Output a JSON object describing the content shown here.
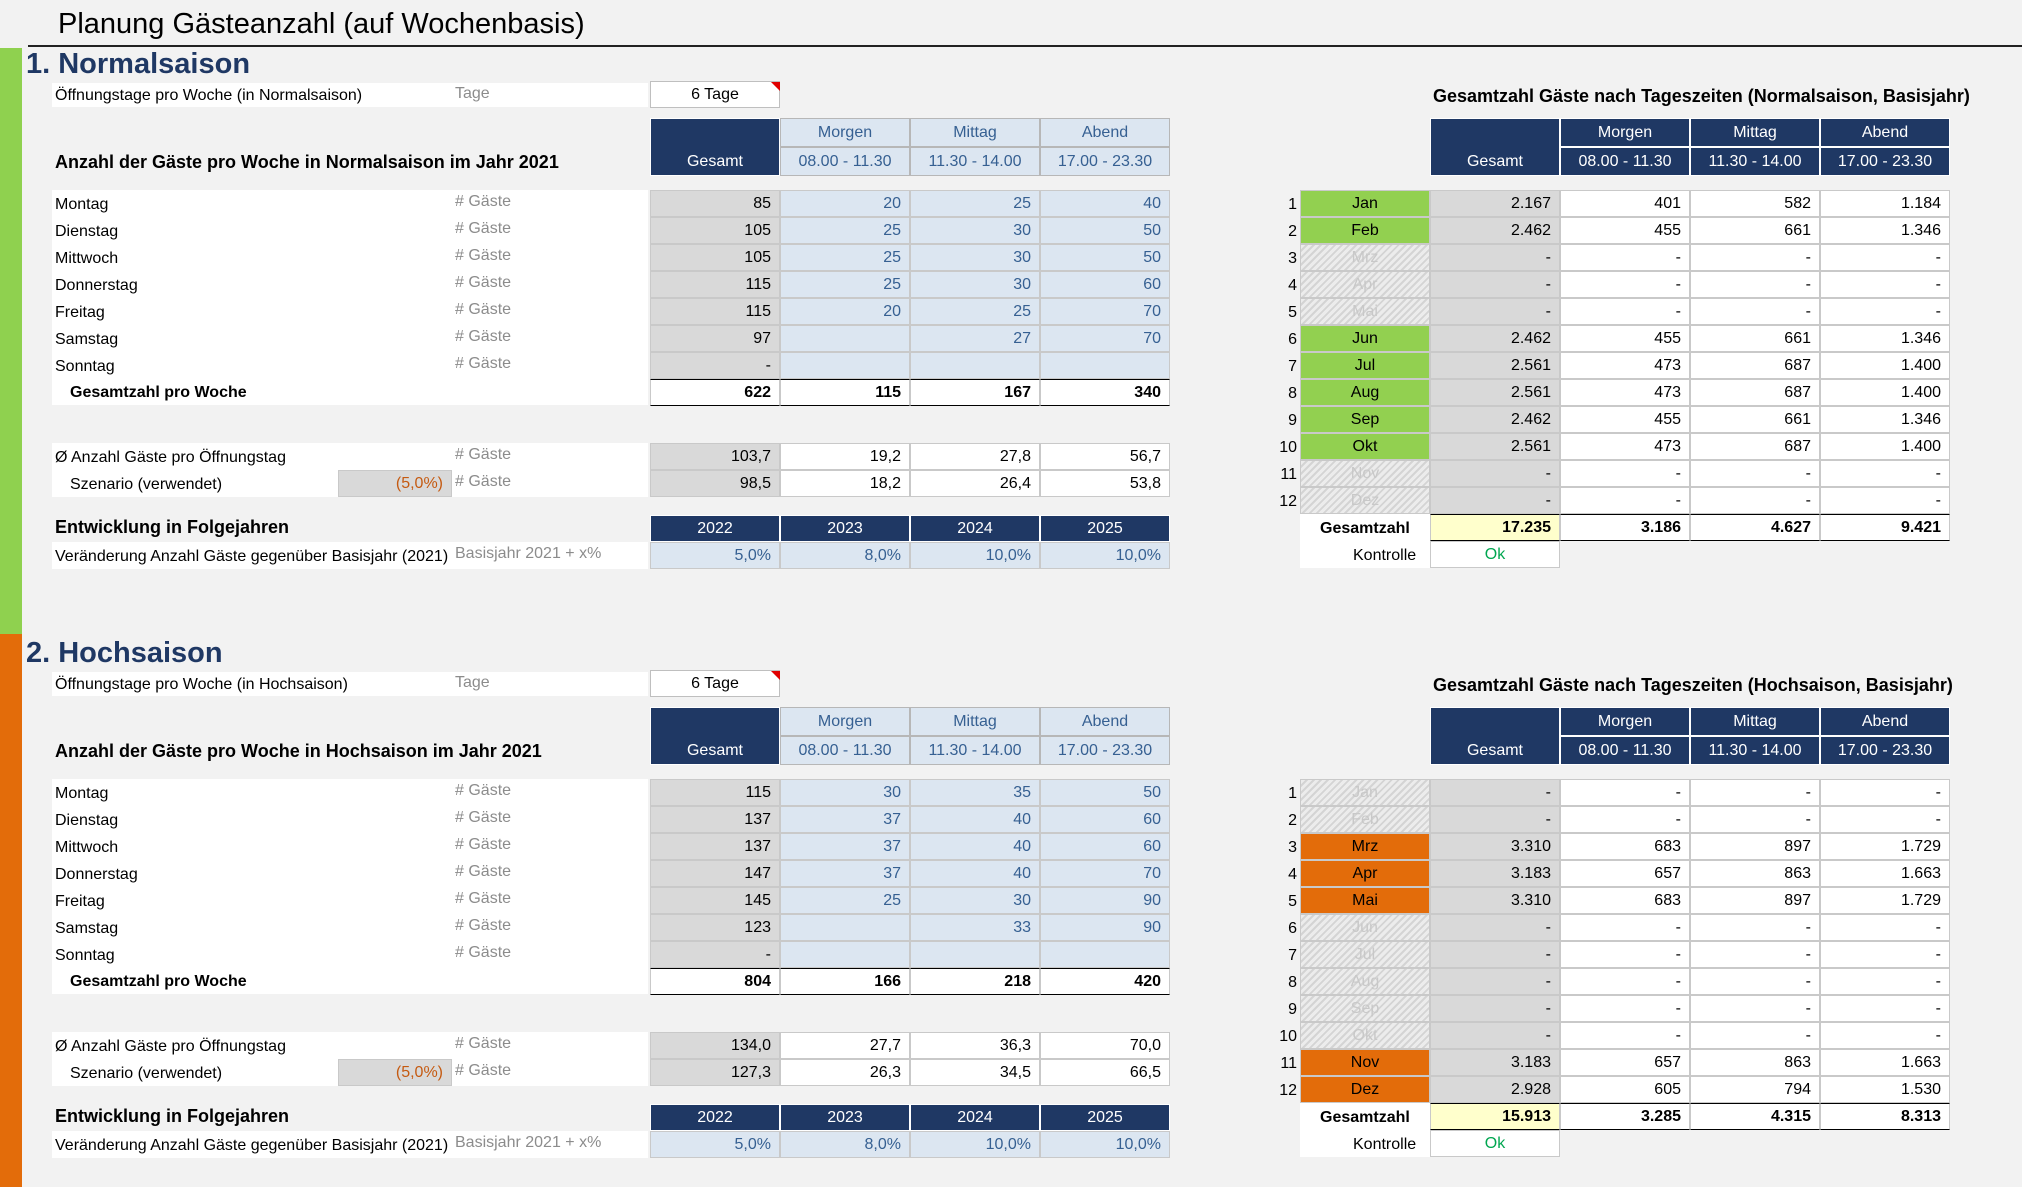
{
  "page_title": "Planung Gästeanzahl (auf Wochenbasis)",
  "sections": [
    {
      "title": "1. Normalsaison",
      "open_days_label": "Öffnungstage pro Woche (in Normalsaison)",
      "open_days_unit": "Tage",
      "open_days_value": "6 Tage",
      "weekly_title": "Anzahl der Gäste pro Woche in Normalsaison im Jahr 2021",
      "col_headers": {
        "total": "Gesamt",
        "morning": "Morgen",
        "noon": "Mittag",
        "evening": "Abend",
        "morning_time": "08.00 - 11.30",
        "noon_time": "11.30 - 14.00",
        "evening_time": "17.00 - 23.30"
      },
      "guest_unit": "# Gäste",
      "days": [
        {
          "day": "Montag",
          "total": "85",
          "morning": "20",
          "noon": "25",
          "evening": "40"
        },
        {
          "day": "Dienstag",
          "total": "105",
          "morning": "25",
          "noon": "30",
          "evening": "50"
        },
        {
          "day": "Mittwoch",
          "total": "105",
          "morning": "25",
          "noon": "30",
          "evening": "50"
        },
        {
          "day": "Donnerstag",
          "total": "115",
          "morning": "25",
          "noon": "30",
          "evening": "60"
        },
        {
          "day": "Freitag",
          "total": "115",
          "morning": "20",
          "noon": "25",
          "evening": "70"
        },
        {
          "day": "Samstag",
          "total": "97",
          "morning": "",
          "noon": "27",
          "evening": "70"
        },
        {
          "day": "Sonntag",
          "total": "-",
          "morning": "",
          "noon": "",
          "evening": ""
        }
      ],
      "week_total": {
        "label": "Gesamtzahl pro Woche",
        "total": "622",
        "morning": "115",
        "noon": "167",
        "evening": "340"
      },
      "avg": {
        "label": "Ø Anzahl Gäste pro Öffnungstag",
        "unit": "# Gäste",
        "total": "103,7",
        "morning": "19,2",
        "noon": "27,8",
        "evening": "56,7"
      },
      "scenario": {
        "label": "Szenario (verwendet)",
        "pct": "(5,0%)",
        "unit": "# Gäste",
        "total": "98,5",
        "morning": "18,2",
        "noon": "26,4",
        "evening": "53,8"
      },
      "dev_title": "Entwicklung in Folgejahren",
      "years": [
        "2022",
        "2023",
        "2024",
        "2025"
      ],
      "dev_label": "Veränderung Anzahl Gäste gegenüber Basisjahr (2021)",
      "dev_unit": "Basisjahr 2021 + x%",
      "dev_values": [
        "5,0%",
        "8,0%",
        "10,0%",
        "10,0%"
      ],
      "right_title": "Gesamtzahl Gäste nach Tageszeiten (Normalsaison, Basisjahr)",
      "months": [
        {
          "n": "1",
          "m": "Jan",
          "state": "green",
          "total": "2.167",
          "morning": "401",
          "noon": "582",
          "evening": "1.184"
        },
        {
          "n": "2",
          "m": "Feb",
          "state": "green",
          "total": "2.462",
          "morning": "455",
          "noon": "661",
          "evening": "1.346"
        },
        {
          "n": "3",
          "m": "Mrz",
          "state": "hatch",
          "total": "-",
          "morning": "-",
          "noon": "-",
          "evening": "-"
        },
        {
          "n": "4",
          "m": "Apr",
          "state": "hatch",
          "total": "-",
          "morning": "-",
          "noon": "-",
          "evening": "-"
        },
        {
          "n": "5",
          "m": "Mai",
          "state": "hatch",
          "total": "-",
          "morning": "-",
          "noon": "-",
          "evening": "-"
        },
        {
          "n": "6",
          "m": "Jun",
          "state": "green",
          "total": "2.462",
          "morning": "455",
          "noon": "661",
          "evening": "1.346"
        },
        {
          "n": "7",
          "m": "Jul",
          "state": "green",
          "total": "2.561",
          "morning": "473",
          "noon": "687",
          "evening": "1.400"
        },
        {
          "n": "8",
          "m": "Aug",
          "state": "green",
          "total": "2.561",
          "morning": "473",
          "noon": "687",
          "evening": "1.400"
        },
        {
          "n": "9",
          "m": "Sep",
          "state": "green",
          "total": "2.462",
          "morning": "455",
          "noon": "661",
          "evening": "1.346"
        },
        {
          "n": "10",
          "m": "Okt",
          "state": "green",
          "total": "2.561",
          "morning": "473",
          "noon": "687",
          "evening": "1.400"
        },
        {
          "n": "11",
          "m": "Nov",
          "state": "hatch",
          "total": "-",
          "morning": "-",
          "noon": "-",
          "evening": "-"
        },
        {
          "n": "12",
          "m": "Dez",
          "state": "hatch",
          "total": "-",
          "morning": "-",
          "noon": "-",
          "evening": "-"
        }
      ],
      "grand_total": {
        "label": "Gesamtzahl",
        "total": "17.235",
        "morning": "3.186",
        "noon": "4.627",
        "evening": "9.421"
      },
      "check": {
        "label": "Kontrolle",
        "value": "Ok"
      }
    },
    {
      "title": "2. Hochsaison",
      "open_days_label": "Öffnungstage pro Woche (in Hochsaison)",
      "open_days_unit": "Tage",
      "open_days_value": "6 Tage",
      "weekly_title": "Anzahl der Gäste pro Woche in Hochsaison im Jahr 2021",
      "col_headers": {
        "total": "Gesamt",
        "morning": "Morgen",
        "noon": "Mittag",
        "evening": "Abend",
        "morning_time": "08.00 - 11.30",
        "noon_time": "11.30 - 14.00",
        "evening_time": "17.00 - 23.30"
      },
      "guest_unit": "# Gäste",
      "days": [
        {
          "day": "Montag",
          "total": "115",
          "morning": "30",
          "noon": "35",
          "evening": "50"
        },
        {
          "day": "Dienstag",
          "total": "137",
          "morning": "37",
          "noon": "40",
          "evening": "60"
        },
        {
          "day": "Mittwoch",
          "total": "137",
          "morning": "37",
          "noon": "40",
          "evening": "60"
        },
        {
          "day": "Donnerstag",
          "total": "147",
          "morning": "37",
          "noon": "40",
          "evening": "70"
        },
        {
          "day": "Freitag",
          "total": "145",
          "morning": "25",
          "noon": "30",
          "evening": "90"
        },
        {
          "day": "Samstag",
          "total": "123",
          "morning": "",
          "noon": "33",
          "evening": "90"
        },
        {
          "day": "Sonntag",
          "total": "-",
          "morning": "",
          "noon": "",
          "evening": ""
        }
      ],
      "week_total": {
        "label": "Gesamtzahl pro Woche",
        "total": "804",
        "morning": "166",
        "noon": "218",
        "evening": "420"
      },
      "avg": {
        "label": "Ø Anzahl Gäste pro Öffnungstag",
        "unit": "# Gäste",
        "total": "134,0",
        "morning": "27,7",
        "noon": "36,3",
        "evening": "70,0"
      },
      "scenario": {
        "label": "Szenario (verwendet)",
        "pct": "(5,0%)",
        "unit": "# Gäste",
        "total": "127,3",
        "morning": "26,3",
        "noon": "34,5",
        "evening": "66,5"
      },
      "dev_title": "Entwicklung in Folgejahren",
      "years": [
        "2022",
        "2023",
        "2024",
        "2025"
      ],
      "dev_label": "Veränderung Anzahl Gäste gegenüber Basisjahr (2021)",
      "dev_unit": "Basisjahr 2021 + x%",
      "dev_values": [
        "5,0%",
        "8,0%",
        "10,0%",
        "10,0%"
      ],
      "right_title": "Gesamtzahl Gäste nach Tageszeiten (Hochsaison, Basisjahr)",
      "months": [
        {
          "n": "1",
          "m": "Jan",
          "state": "hatch",
          "total": "-",
          "morning": "-",
          "noon": "-",
          "evening": "-"
        },
        {
          "n": "2",
          "m": "Feb",
          "state": "hatch",
          "total": "-",
          "morning": "-",
          "noon": "-",
          "evening": "-"
        },
        {
          "n": "3",
          "m": "Mrz",
          "state": "orange",
          "total": "3.310",
          "morning": "683",
          "noon": "897",
          "evening": "1.729"
        },
        {
          "n": "4",
          "m": "Apr",
          "state": "orange",
          "total": "3.183",
          "morning": "657",
          "noon": "863",
          "evening": "1.663"
        },
        {
          "n": "5",
          "m": "Mai",
          "state": "orange",
          "total": "3.310",
          "morning": "683",
          "noon": "897",
          "evening": "1.729"
        },
        {
          "n": "6",
          "m": "Jun",
          "state": "hatch",
          "total": "-",
          "morning": "-",
          "noon": "-",
          "evening": "-"
        },
        {
          "n": "7",
          "m": "Jul",
          "state": "hatch",
          "total": "-",
          "morning": "-",
          "noon": "-",
          "evening": "-"
        },
        {
          "n": "8",
          "m": "Aug",
          "state": "hatch",
          "total": "-",
          "morning": "-",
          "noon": "-",
          "evening": "-"
        },
        {
          "n": "9",
          "m": "Sep",
          "state": "hatch",
          "total": "-",
          "morning": "-",
          "noon": "-",
          "evening": "-"
        },
        {
          "n": "10",
          "m": "Okt",
          "state": "hatch",
          "total": "-",
          "morning": "-",
          "noon": "-",
          "evening": "-"
        },
        {
          "n": "11",
          "m": "Nov",
          "state": "orange",
          "total": "3.183",
          "morning": "657",
          "noon": "863",
          "evening": "1.663"
        },
        {
          "n": "12",
          "m": "Dez",
          "state": "orange",
          "total": "2.928",
          "morning": "605",
          "noon": "794",
          "evening": "1.530"
        }
      ],
      "grand_total": {
        "label": "Gesamtzahl",
        "total": "15.913",
        "morning": "3.285",
        "noon": "4.315",
        "evening": "8.313"
      },
      "check": {
        "label": "Kontrolle",
        "value": "Ok"
      }
    }
  ]
}
